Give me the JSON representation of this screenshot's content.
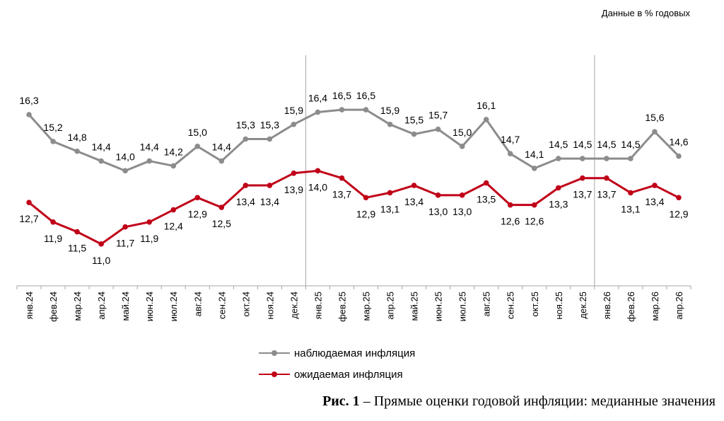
{
  "unit_label": "Данные в % годовых",
  "caption": {
    "bold": "Рис. 1",
    "text": " – Прямые оценки годовой инфляции: медианные значения"
  },
  "colors": {
    "observed": "#8c8c8c",
    "expected": "#c00018",
    "separator": "#a6a6a6",
    "axis": "#a6a6a6"
  },
  "chart_data": {
    "type": "line",
    "categories": [
      "янв.24",
      "фев.24",
      "мар.24",
      "апр.24",
      "май.24",
      "июн.24",
      "июл.24",
      "авг.24",
      "сен.24",
      "окт.24",
      "ноя.24",
      "дек.24",
      "янв.25",
      "фев.25",
      "мар.25",
      "апр.25",
      "май.25",
      "июн.25",
      "июл.25",
      "авг.25",
      "сен.25",
      "окт.25",
      "ноя.25",
      "дек.25",
      "янв.26",
      "фев.26",
      "мар.26",
      "апр.26"
    ],
    "series": [
      {
        "name": "наблюдаемая инфляция",
        "values": [
          16.3,
          15.2,
          14.8,
          14.4,
          14.0,
          14.4,
          14.2,
          15.0,
          14.4,
          15.3,
          15.3,
          15.9,
          16.4,
          16.5,
          16.5,
          15.9,
          15.5,
          15.7,
          15.0,
          16.1,
          14.7,
          14.1,
          14.5,
          14.5,
          14.5,
          14.5,
          15.6,
          14.6
        ],
        "labels": [
          "16,3",
          "15,2",
          "14,8",
          "14,4",
          "14,0",
          "14,4",
          "14,2",
          "15,0",
          "14,4",
          "15,3",
          "15,3",
          "15,9",
          "16,4",
          "16,5",
          "16,5",
          "15,9",
          "15,5",
          "15,7",
          "15,0",
          "16,1",
          "14,7",
          "14,1",
          "14,5",
          "14,5",
          "14,5",
          "14,5",
          "15,6",
          "14,6"
        ]
      },
      {
        "name": "ожидаемая инфляция",
        "values": [
          12.7,
          11.9,
          11.5,
          11.0,
          11.7,
          11.9,
          12.4,
          12.9,
          12.5,
          13.4,
          13.4,
          13.9,
          14.0,
          13.7,
          12.9,
          13.1,
          13.4,
          13.0,
          13.0,
          13.5,
          12.6,
          12.6,
          13.3,
          13.7,
          13.7,
          13.1,
          13.4,
          12.9
        ],
        "labels": [
          "12,7",
          "11,9",
          "11,5",
          "11,0",
          "11,7",
          "11,9",
          "12,4",
          "12,9",
          "12,5",
          "13,4",
          "13,4",
          "13,9",
          "14,0",
          "13,7",
          "12,9",
          "13,1",
          "13,4",
          "13,0",
          "13,0",
          "13,5",
          "12,6",
          "12,6",
          "13,3",
          "13,7",
          "13,7",
          "13,1",
          "13,4",
          "12,9"
        ]
      }
    ],
    "separators_after": [
      "дек.24",
      "дек.25"
    ],
    "legend_position": "bottom",
    "grid": false
  }
}
